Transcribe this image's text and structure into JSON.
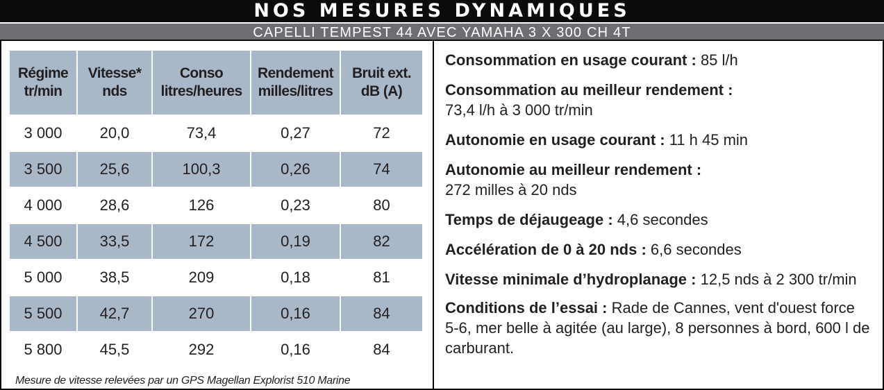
{
  "title": "NOS MESURES DYNAMIQUES",
  "subtitle": "CAPELLI TEMPEST 44 AVEC YAMAHA 3 X 300 CH 4T",
  "table": {
    "headers": [
      [
        "Régime",
        "tr/min"
      ],
      [
        "Vitesse*",
        "nds"
      ],
      [
        "Conso",
        "litres/heures"
      ],
      [
        "Rendement",
        "milles/litres"
      ],
      [
        "Bruit ext.",
        "dB (A)"
      ]
    ],
    "rows": [
      [
        "3 000",
        "20,0",
        "73,4",
        "0,27",
        "72"
      ],
      [
        "3 500",
        "25,6",
        "100,3",
        "0,26",
        "74"
      ],
      [
        "4 000",
        "28,6",
        "126",
        "0,23",
        "80"
      ],
      [
        "4 500",
        "33,5",
        "172",
        "0,19",
        "82"
      ],
      [
        "5 000",
        "38,5",
        "209",
        "0,18",
        "81"
      ],
      [
        "5 500",
        "42,7",
        "270",
        "0,16",
        "84"
      ],
      [
        "5 800",
        "45,5",
        "292",
        "0,16",
        "84"
      ]
    ],
    "footnote": "Mesure de vitesse relevées par un GPS Magellan Explorist 510 Marine"
  },
  "stats": [
    {
      "label": "Consommation en usage courant :",
      "value": " 85 l/h"
    },
    {
      "label": "Consommation au meilleur rendement :",
      "value": "73,4 l/h à 3 000 tr/min"
    },
    {
      "label": "Autonomie en usage courant :",
      "value": " 11 h 45 min"
    },
    {
      "label": "Autonomie au meilleur rendement :",
      "value": "272 milles à 20 nds"
    },
    {
      "label": "Temps de déjaugeage :",
      "value": " 4,6 secondes"
    },
    {
      "label": "Accélération de 0 à 20 nds :",
      "value": " 6,6 secondes"
    },
    {
      "label": "Vitesse minimale d’hydroplanage :",
      "value": " 12,5 nds à 2 300 tr/min"
    },
    {
      "label": "Conditions de l’essai :",
      "value": " Rade de Cannes, vent d'ouest force 5-6, mer belle à agitée (au large), 8 personnes à bord, 600 l de carburant."
    }
  ]
}
